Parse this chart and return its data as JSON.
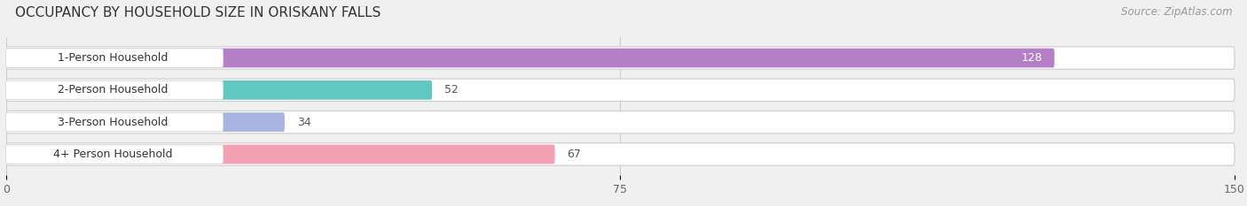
{
  "title": "OCCUPANCY BY HOUSEHOLD SIZE IN ORISKANY FALLS",
  "source": "Source: ZipAtlas.com",
  "categories": [
    "1-Person Household",
    "2-Person Household",
    "3-Person Household",
    "4+ Person Household"
  ],
  "values": [
    128,
    52,
    34,
    67
  ],
  "bar_colors": [
    "#b57fc8",
    "#60c8c0",
    "#aab4e0",
    "#f4a0b4"
  ],
  "xlim": [
    0,
    150
  ],
  "xticks": [
    0,
    75,
    150
  ],
  "background_color": "#f0f0f0",
  "title_fontsize": 11,
  "source_fontsize": 8.5,
  "label_fontsize": 9,
  "value_fontsize": 9
}
